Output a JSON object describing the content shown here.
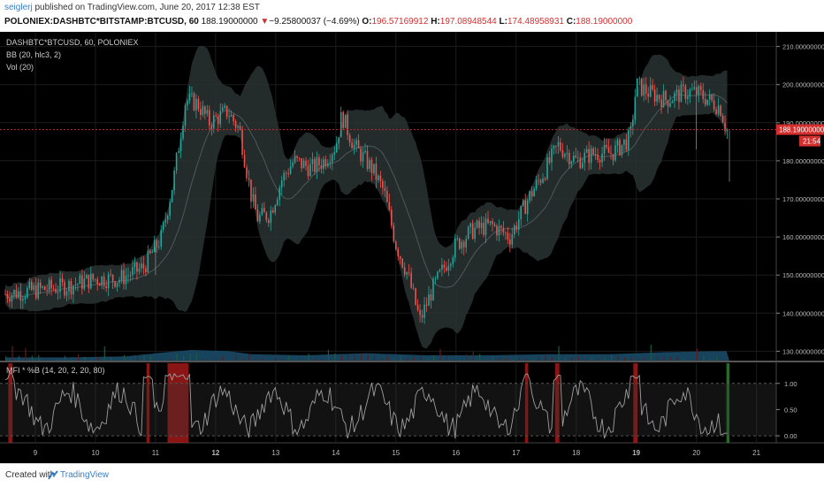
{
  "header": {
    "user": "seiglerj",
    "published": " published on TradingView.com, June 20, 2017 12:38 EST",
    "symbol": "POLONIEX:DASHBTC*BITSTAMP:BTCUSD, 60",
    "last": "188.19000000",
    "change": "▼",
    "change_value": "−9.25800037 (−4.69%)",
    "o_label": "O:",
    "o_value": "196.57169912",
    "h_label": "H:",
    "h_value": "197.08948544",
    "l_label": "L:",
    "l_value": "174.48958931",
    "c_label": "C:",
    "c_value": "188.19000000"
  },
  "legend": {
    "main": "DASHBTC*BTCUSD, 60, POLONIEX",
    "bb": "BB (20, hlc3, 2)",
    "vol": "Vol (20)",
    "mfi": "MFI * %B (14, 20, 2, 20, 80)"
  },
  "price_tag": {
    "value": "188.19000000",
    "countdown": "21:54"
  },
  "footer": {
    "created": "Created with",
    "brand": "TradingView"
  },
  "colors": {
    "background": "#000000",
    "up": "#26a69a",
    "down": "#ef5350",
    "band_fill": "#2a3233",
    "mfi_line": "#9e9e9e",
    "mfi_alert": "#b71c1c",
    "mfi_green": "#2e7d32",
    "volume": "#1a4a66",
    "price_line": "#c62828"
  },
  "chart_data": {
    "type": "candlestick",
    "x_ticks": [
      "9",
      "10",
      "11",
      "12",
      "13",
      "14",
      "15",
      "16",
      "17",
      "18",
      "19",
      "20",
      "21"
    ],
    "x_tick_positions": [
      9,
      10,
      11,
      12,
      13,
      14,
      15,
      16,
      17,
      18,
      19,
      20,
      21
    ],
    "xlim": [
      8.5,
      21.3
    ],
    "price_axis": {
      "ylim": [
        128,
        212
      ],
      "ticks": [
        "210.00000000",
        "200.00000000",
        "190.00000000",
        "180.00000000",
        "170.00000000",
        "160.00000000",
        "150.00000000",
        "140.00000000",
        "130.00000000"
      ],
      "tick_values": [
        210,
        200,
        190,
        180,
        170,
        160,
        150,
        140,
        130
      ]
    },
    "close_anchors": [
      [
        8.5,
        145
      ],
      [
        9.0,
        146
      ],
      [
        9.5,
        147
      ],
      [
        10.0,
        149
      ],
      [
        10.4,
        149
      ],
      [
        10.8,
        152
      ],
      [
        11.1,
        160
      ],
      [
        11.3,
        175
      ],
      [
        11.5,
        196
      ],
      [
        11.7,
        195
      ],
      [
        11.9,
        190
      ],
      [
        12.2,
        193
      ],
      [
        12.4,
        188
      ],
      [
        12.6,
        170
      ],
      [
        12.7,
        165
      ],
      [
        12.9,
        166
      ],
      [
        13.1,
        175
      ],
      [
        13.3,
        180
      ],
      [
        13.6,
        178
      ],
      [
        13.8,
        180
      ],
      [
        14.0,
        184
      ],
      [
        14.1,
        192
      ],
      [
        14.2,
        188
      ],
      [
        14.3,
        184
      ],
      [
        14.4,
        182
      ],
      [
        14.6,
        178
      ],
      [
        14.8,
        172
      ],
      [
        15.0,
        158
      ],
      [
        15.2,
        150
      ],
      [
        15.4,
        138
      ],
      [
        15.6,
        146
      ],
      [
        15.8,
        152
      ],
      [
        16.0,
        158
      ],
      [
        16.3,
        162
      ],
      [
        16.6,
        163
      ],
      [
        16.9,
        160
      ],
      [
        17.2,
        170
      ],
      [
        17.5,
        178
      ],
      [
        17.7,
        184
      ],
      [
        18.0,
        180
      ],
      [
        18.3,
        182
      ],
      [
        18.6,
        182
      ],
      [
        18.9,
        186
      ],
      [
        19.0,
        200
      ],
      [
        19.2,
        198
      ],
      [
        19.5,
        196
      ],
      [
        19.8,
        198
      ],
      [
        20.0,
        198
      ],
      [
        20.2,
        196
      ],
      [
        20.4,
        194
      ],
      [
        20.5,
        188
      ]
    ],
    "vol_band_anchors": [
      [
        8.5,
        3
      ],
      [
        9.5,
        3
      ],
      [
        10.5,
        4
      ],
      [
        11.2,
        8
      ],
      [
        11.6,
        10
      ],
      [
        12.2,
        9
      ],
      [
        12.6,
        6
      ],
      [
        13.5,
        5
      ],
      [
        14.5,
        7
      ],
      [
        15.5,
        5
      ],
      [
        16.5,
        5
      ],
      [
        17.5,
        6
      ],
      [
        18.5,
        6
      ],
      [
        19.5,
        8
      ],
      [
        20.5,
        9
      ]
    ],
    "mfi_axis": {
      "ylim": [
        -0.1,
        1.3
      ],
      "ticks": [
        "1.00",
        "0.50",
        "0.00"
      ],
      "tick_values": [
        1.0,
        0.5,
        0.0
      ]
    },
    "mfi_alert_spans": [
      [
        8.55,
        8.62
      ],
      [
        10.85,
        10.9
      ],
      [
        11.2,
        11.55
      ],
      [
        17.15,
        17.2
      ],
      [
        17.65,
        17.72
      ],
      [
        18.95,
        19.02
      ]
    ],
    "mfi_green_spans": [
      [
        20.5,
        20.55
      ]
    ]
  }
}
